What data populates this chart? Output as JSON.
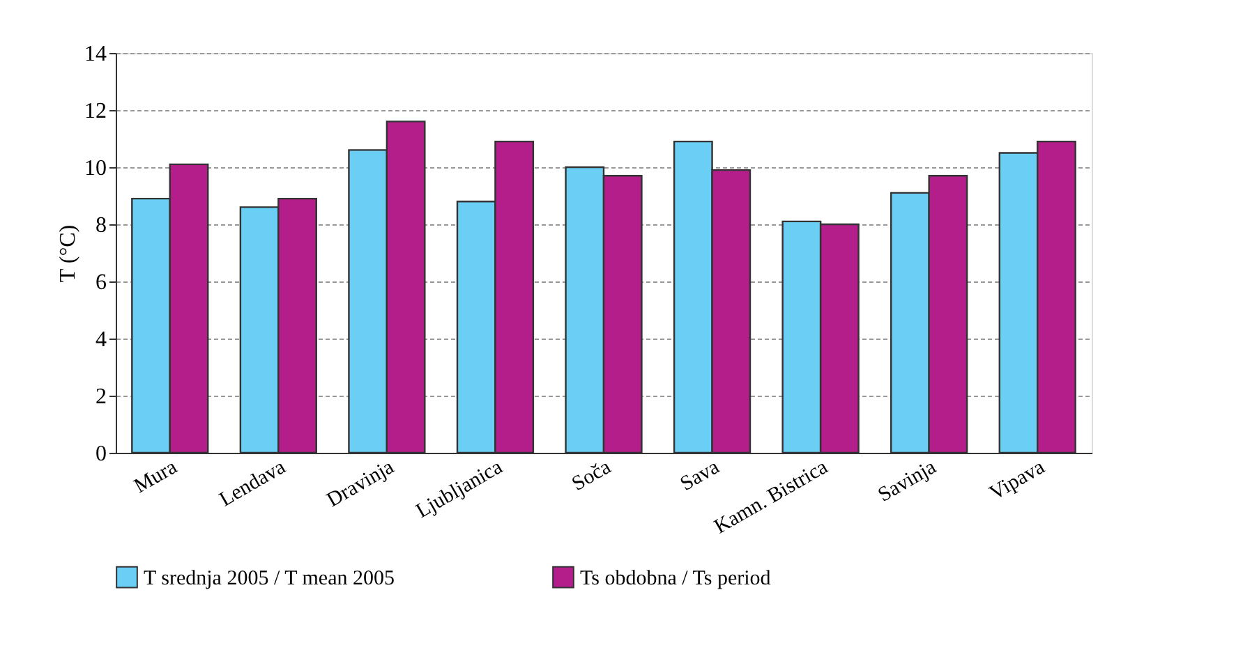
{
  "chart_data": {
    "type": "bar",
    "ylabel": "T (°C)",
    "categories": [
      "Mura",
      "Lendava",
      "Dravinja",
      "Ljubljanica",
      "Soča",
      "Sava",
      "Kamn. Bistrica",
      "Savinja",
      "Vipava"
    ],
    "series": [
      {
        "name": "T srednja 2005 / T mean 2005",
        "color": "#6bcff5",
        "values": [
          8.9,
          8.6,
          10.6,
          8.8,
          10.0,
          10.9,
          8.1,
          9.1,
          10.5
        ]
      },
      {
        "name": "Ts obdobna / Ts period",
        "color": "#b31e8a",
        "values": [
          10.1,
          8.9,
          11.6,
          10.9,
          9.7,
          9.9,
          8.0,
          9.7,
          10.9
        ]
      }
    ],
    "ylim": [
      0,
      14
    ],
    "yticks": [
      0,
      2,
      4,
      6,
      8,
      10,
      12,
      14
    ],
    "grid": "y",
    "legend": "bottom"
  }
}
